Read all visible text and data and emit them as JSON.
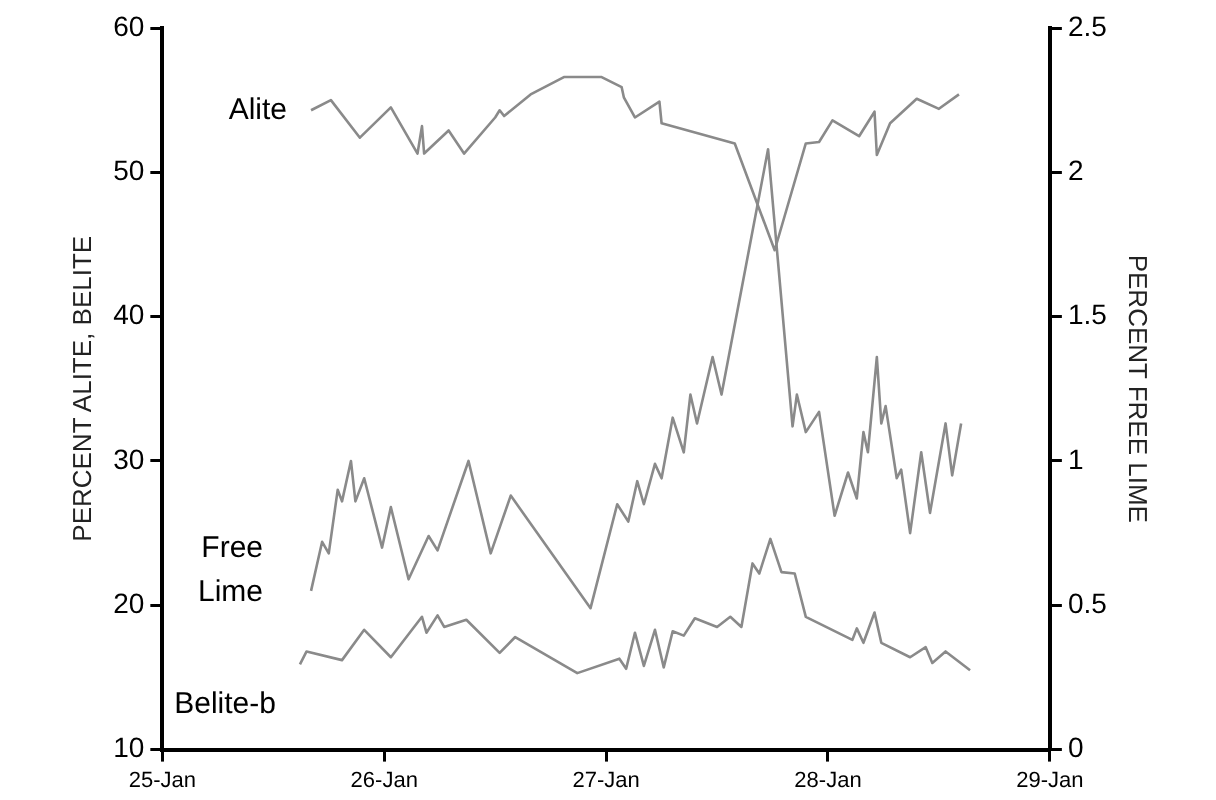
{
  "chart_data": {
    "type": "line",
    "ylabel": "PERCENT ALITE, BELITE",
    "y2label": "PERCENT FREE LIME",
    "xlim": [
      "--01-25",
      "--01-29"
    ],
    "xticks": [
      {
        "value": "--01-25",
        "label": "25-Jan"
      },
      {
        "value": "--01-26",
        "label": "26-Jan"
      },
      {
        "value": "--01-27",
        "label": "27-Jan"
      },
      {
        "value": "--01-28",
        "label": "28-Jan"
      },
      {
        "value": "--01-29",
        "label": "29-Jan"
      }
    ],
    "ylim": [
      10,
      60
    ],
    "yticks": [
      10,
      20,
      30,
      40,
      50,
      60
    ],
    "y2lim": [
      0,
      2.5
    ],
    "y2ticks": [
      0,
      0.5,
      1,
      1.5,
      2,
      2.5
    ],
    "grid": false,
    "legend": false,
    "marker": "none",
    "line_style": "solid",
    "series": [
      {
        "name": "Alite",
        "color": "#8a8a8a",
        "x": [
          "--01-25T16:05",
          "--01-25T18:14",
          "--01-25T21:22",
          "--01-26T00:43",
          "--01-26T03:36",
          "--01-26T04:05",
          "--01-26T04:19",
          "--01-26T06:58",
          "--01-26T08:38",
          "--01-26T12:00",
          "--01-26T12:29",
          "--01-26T12:58",
          "--01-26T15:50",
          "--01-26T19:26",
          "--01-26T23:31",
          "--01-27T01:41",
          "--01-27T01:55",
          "--01-27T03:07",
          "--01-27T05:46",
          "--01-27T06:00",
          "--01-27T13:55",
          "--01-27T18:14",
          "--01-27T21:36",
          "--01-27T23:02",
          "--01-28T00:29",
          "--01-28T03:22",
          "--01-28T05:02",
          "--01-28T05:17",
          "--01-28T06:43",
          "--01-28T09:36",
          "--01-28T12:00",
          "--01-28T14:10"
        ],
        "values": [
          54.3,
          55.0,
          52.4,
          54.5,
          51.3,
          53.2,
          51.3,
          52.9,
          51.3,
          53.8,
          54.3,
          53.9,
          55.4,
          56.6,
          56.6,
          55.9,
          55.2,
          53.8,
          54.9,
          53.4,
          52.0,
          44.6,
          52.0,
          52.1,
          53.6,
          52.5,
          54.2,
          51.2,
          53.4,
          55.1,
          54.4,
          55.4
        ]
      },
      {
        "name": "Free Lime",
        "color": "#8a8a8a",
        "axis": "y2",
        "x": [
          "--01-25T16:05",
          "--01-25T17:17",
          "--01-25T18:00",
          "--01-25T18:58",
          "--01-25T19:26",
          "--01-25T20:24",
          "--01-25T20:53",
          "--01-25T21:50",
          "--01-25T23:46",
          "--01-26T00:43",
          "--01-26T02:38",
          "--01-26T04:48",
          "--01-26T05:46",
          "--01-26T09:07",
          "--01-26T11:31",
          "--01-26T13:41",
          "--01-26T22:19",
          "--01-27T01:12",
          "--01-27T02:24",
          "--01-27T03:22",
          "--01-27T04:05",
          "--01-27T05:17",
          "--01-27T06:00",
          "--01-27T07:12",
          "--01-27T08:24",
          "--01-27T09:07",
          "--01-27T09:50",
          "--01-27T11:31",
          "--01-27T12:29",
          "--01-27T17:31",
          "--01-27T20:10",
          "--01-27T20:38",
          "--01-27T21:36",
          "--01-27T23:02",
          "--01-28T00:43",
          "--01-28T02:10",
          "--01-28T03:07",
          "--01-28T03:50",
          "--01-28T04:19",
          "--01-28T05:17",
          "--01-28T05:46",
          "--01-28T06:14",
          "--01-28T07:26",
          "--01-28T07:55",
          "--01-28T08:53",
          "--01-28T10:05",
          "--01-28T11:02",
          "--01-28T12:43",
          "--01-28T13:26",
          "--01-28T14:24"
        ],
        "values": [
          0.55,
          0.72,
          0.68,
          0.9,
          0.86,
          1.0,
          0.86,
          0.94,
          0.7,
          0.84,
          0.59,
          0.74,
          0.69,
          1.0,
          0.68,
          0.88,
          0.49,
          0.85,
          0.79,
          0.93,
          0.85,
          0.99,
          0.94,
          1.15,
          1.03,
          1.23,
          1.13,
          1.36,
          1.23,
          2.08,
          1.12,
          1.23,
          1.1,
          1.17,
          0.81,
          0.96,
          0.87,
          1.1,
          1.03,
          1.36,
          1.13,
          1.19,
          0.94,
          0.97,
          0.75,
          1.03,
          0.82,
          1.13,
          0.95,
          1.13
        ]
      },
      {
        "name": "Belite-b",
        "color": "#8a8a8a",
        "x": [
          "--01-25T14:53",
          "--01-25T15:36",
          "--01-25T19:26",
          "--01-25T21:50",
          "--01-26T00:43",
          "--01-26T04:05",
          "--01-26T04:34",
          "--01-26T05:46",
          "--01-26T06:29",
          "--01-26T08:53",
          "--01-26T12:29",
          "--01-26T14:10",
          "--01-26T20:53",
          "--01-27T01:26",
          "--01-27T02:10",
          "--01-27T03:07",
          "--01-27T04:05",
          "--01-27T05:17",
          "--01-27T06:14",
          "--01-27T07:12",
          "--01-27T08:24",
          "--01-27T09:36",
          "--01-27T12:00",
          "--01-27T13:26",
          "--01-27T14:38",
          "--01-27T15:50",
          "--01-27T16:34",
          "--01-27T17:46",
          "--01-27T18:58",
          "--01-27T20:24",
          "--01-27T21:36",
          "--01-28T02:38",
          "--01-28T03:07",
          "--01-28T03:50",
          "--01-28T05:02",
          "--01-28T05:46",
          "--01-28T08:53",
          "--01-28T10:34",
          "--01-28T11:17",
          "--01-28T12:43",
          "--01-28T15:22"
        ],
        "values": [
          15.9,
          16.8,
          16.2,
          18.3,
          16.4,
          19.2,
          18.1,
          19.3,
          18.5,
          19.0,
          16.7,
          17.8,
          15.3,
          16.3,
          15.6,
          18.1,
          15.8,
          18.3,
          15.7,
          18.2,
          17.9,
          19.1,
          18.5,
          19.2,
          18.5,
          22.9,
          22.2,
          24.6,
          22.3,
          22.2,
          19.2,
          17.6,
          18.4,
          17.4,
          19.5,
          17.4,
          16.4,
          17.1,
          16.0,
          16.8,
          15.5
        ]
      }
    ]
  }
}
